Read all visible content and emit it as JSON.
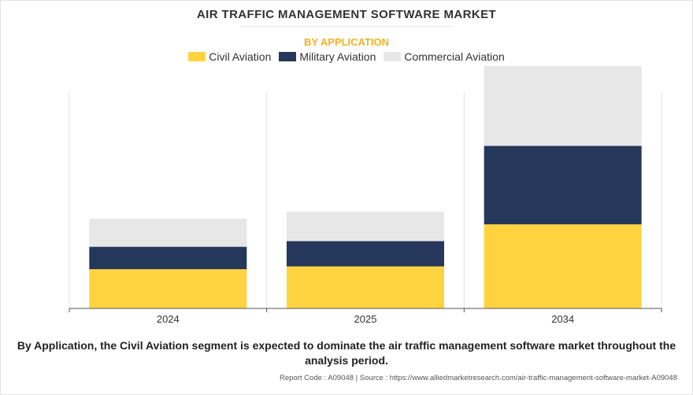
{
  "header": {
    "title": "AIR TRAFFIC MANAGEMENT SOFTWARE MARKET",
    "subtitle": "BY APPLICATION"
  },
  "legend": {
    "items": [
      {
        "label": "Civil Aviation",
        "color": "#fed33f"
      },
      {
        "label": "Military Aviation",
        "color": "#25375a"
      },
      {
        "label": "Commercial Aviation",
        "color": "#e7e7e7"
      }
    ]
  },
  "chart_data": {
    "type": "bar",
    "stacked": true,
    "categories": [
      "2024",
      "2025",
      "2034"
    ],
    "series": [
      {
        "name": "Civil Aviation",
        "color": "#fed33f",
        "values": [
          1.4,
          1.5,
          3.0
        ]
      },
      {
        "name": "Military Aviation",
        "color": "#25375a",
        "values": [
          0.8,
          0.9,
          2.8
        ]
      },
      {
        "name": "Commercial Aviation",
        "color": "#e7e7e7",
        "values": [
          1.0,
          1.05,
          2.85
        ]
      }
    ],
    "ylim": [
      0,
      10.3
    ],
    "title": "AIR TRAFFIC MANAGEMENT SOFTWARE MARKET",
    "subtitle": "BY APPLICATION",
    "xlabel": "",
    "ylabel": "",
    "legend_position": "top"
  },
  "caption": "By Application, the Civil Aviation segment is expected to dominate the air traffic management software market throughout the analysis period.",
  "footer": "Report Code : A09048  |  Source : https://www.alliedmarketresearch.com/air-traffic-management-software-market-A09048"
}
